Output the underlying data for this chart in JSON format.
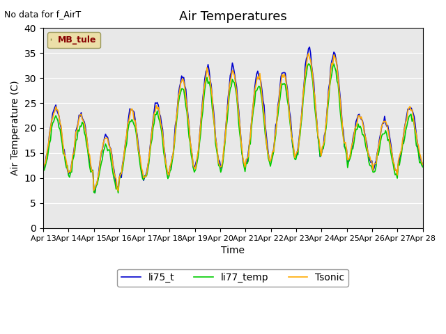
{
  "title": "Air Temperatures",
  "no_data_text": "No data for f_AirT",
  "mb_tule_label": "MB_tule",
  "xlabel": "Time",
  "ylabel": "Air Temperature (C)",
  "ylim": [
    0,
    40
  ],
  "yticks": [
    0,
    5,
    10,
    15,
    20,
    25,
    30,
    35,
    40
  ],
  "x_tick_labels": [
    "Apr 13",
    "Apr 14",
    "Apr 15",
    "Apr 16",
    "Apr 17",
    "Apr 18",
    "Apr 19",
    "Apr 20",
    "Apr 21",
    "Apr 22",
    "Apr 23",
    "Apr 24",
    "Apr 25",
    "Apr 26",
    "Apr 27",
    "Apr 28"
  ],
  "line_colors": {
    "li75_t": "#0000cc",
    "li77_temp": "#00cc00",
    "Tsonic": "#ffaa00"
  },
  "line_width": 1.2,
  "background_color": "#e8e8e8",
  "fig_background": "#ffffff",
  "title_fontsize": 13,
  "axis_fontsize": 10,
  "legend_fontsize": 10
}
